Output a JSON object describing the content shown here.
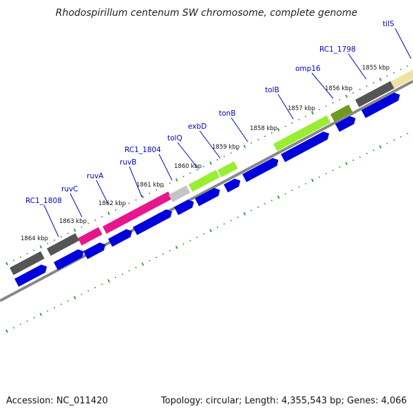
{
  "title": "Rhodospirillum centenum SW chromosome, complete genome",
  "footer": {
    "accession": "Accession: NC_011420",
    "topology": "Topology: circular; Length: 4,355,543 bp; Genes: 4,066"
  },
  "colors": {
    "background": "#ffffff",
    "backbone": "#8a8a8a",
    "cds_arrow": "#0000dd",
    "tick_dots": "#1a8a1a",
    "label_text": "#0000cc",
    "gene_gray": "#555555",
    "gene_magenta": "#e8168a",
    "gene_lightgray": "#c4c4c4",
    "gene_lime": "#99ee33",
    "gene_olive": "#6e9a1e",
    "gene_tan": "#efe3a3"
  },
  "ticks": [
    {
      "label": "1864 kbp"
    },
    {
      "label": "1863 kbp"
    },
    {
      "label": "1862 kbp"
    },
    {
      "label": "1861 kbp"
    },
    {
      "label": "1860 kbp"
    },
    {
      "label": "1859 kbp"
    },
    {
      "label": "1858 kbp"
    },
    {
      "label": "1857 kbp"
    },
    {
      "label": "1856 kbp"
    },
    {
      "label": "1855 kbp"
    }
  ],
  "gene_labels": [
    {
      "text": "RC1_1808"
    },
    {
      "text": "ruvC"
    },
    {
      "text": "ruvA"
    },
    {
      "text": "ruvB"
    },
    {
      "text": "RC1_1804"
    },
    {
      "text": "tolQ"
    },
    {
      "text": "exbD"
    },
    {
      "text": "tonB"
    },
    {
      "text": "tolB"
    },
    {
      "text": "omp16"
    },
    {
      "text": "RC1_1798"
    },
    {
      "text": "tilS"
    }
  ]
}
